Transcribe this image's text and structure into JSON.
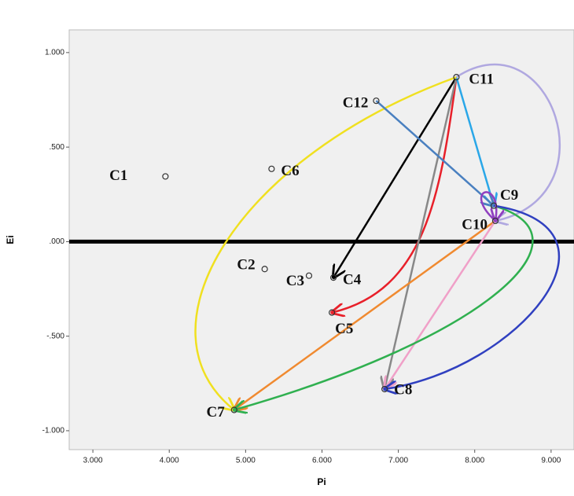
{
  "chart_data": {
    "type": "scatter",
    "x_label": "Pi",
    "y_label": "Ei",
    "labels": [
      "C1",
      "C2",
      "C3",
      "C4",
      "C5",
      "C6",
      "C7",
      "C8",
      "C9",
      "C10",
      "C11",
      "C12"
    ],
    "x": [
      3.95,
      5.25,
      5.83,
      6.15,
      6.13,
      5.34,
      4.85,
      6.82,
      8.25,
      8.27,
      7.76,
      6.71
    ],
    "values": [
      0.345,
      -0.145,
      -0.18,
      -0.19,
      -0.375,
      0.385,
      -0.89,
      -0.78,
      0.19,
      0.11,
      0.87,
      0.745
    ],
    "xlim": [
      2.69,
      9.3
    ],
    "ylim": [
      -1.1,
      1.12
    ],
    "xticks": [
      {
        "value": 3,
        "label": "3.000"
      },
      {
        "value": 4,
        "label": "4.000"
      },
      {
        "value": 5,
        "label": "5.000"
      },
      {
        "value": 6,
        "label": "6.000"
      },
      {
        "value": 7,
        "label": "7.000"
      },
      {
        "value": 8,
        "label": "8.000"
      },
      {
        "value": 9,
        "label": "9.000"
      }
    ],
    "yticks": [
      {
        "value": -1,
        "label": "-1.000"
      },
      {
        "value": -0.5,
        "label": "-.500"
      },
      {
        "value": 0,
        "label": ".000"
      },
      {
        "value": 0.5,
        "label": ".500"
      },
      {
        "value": 1,
        "label": "1.000"
      }
    ],
    "reference_y": 0,
    "links": [
      {
        "from": 10,
        "to": 3,
        "color": "#000000"
      },
      {
        "from": 10,
        "to": 4,
        "color": "#e8202a"
      },
      {
        "from": 10,
        "to": 7,
        "color": "#888888"
      },
      {
        "from": 10,
        "to": 8,
        "color": "#2aa7e8"
      },
      {
        "from": 10,
        "to": 6,
        "color": "#f0e020"
      },
      {
        "from": 10,
        "to": 9,
        "color": "#b0a8e0"
      },
      {
        "from": 11,
        "to": 8,
        "color": "#4a80c0"
      },
      {
        "from": 9,
        "to": 6,
        "color": "#f08a30"
      },
      {
        "from": 9,
        "to": 7,
        "color": "#f0a0c8"
      },
      {
        "from": 8,
        "to": 6,
        "color": "#30b050"
      },
      {
        "from": 8,
        "to": 7,
        "color": "#3040c0"
      },
      {
        "from": 9,
        "to": 9,
        "color": "#9040c0"
      }
    ]
  }
}
